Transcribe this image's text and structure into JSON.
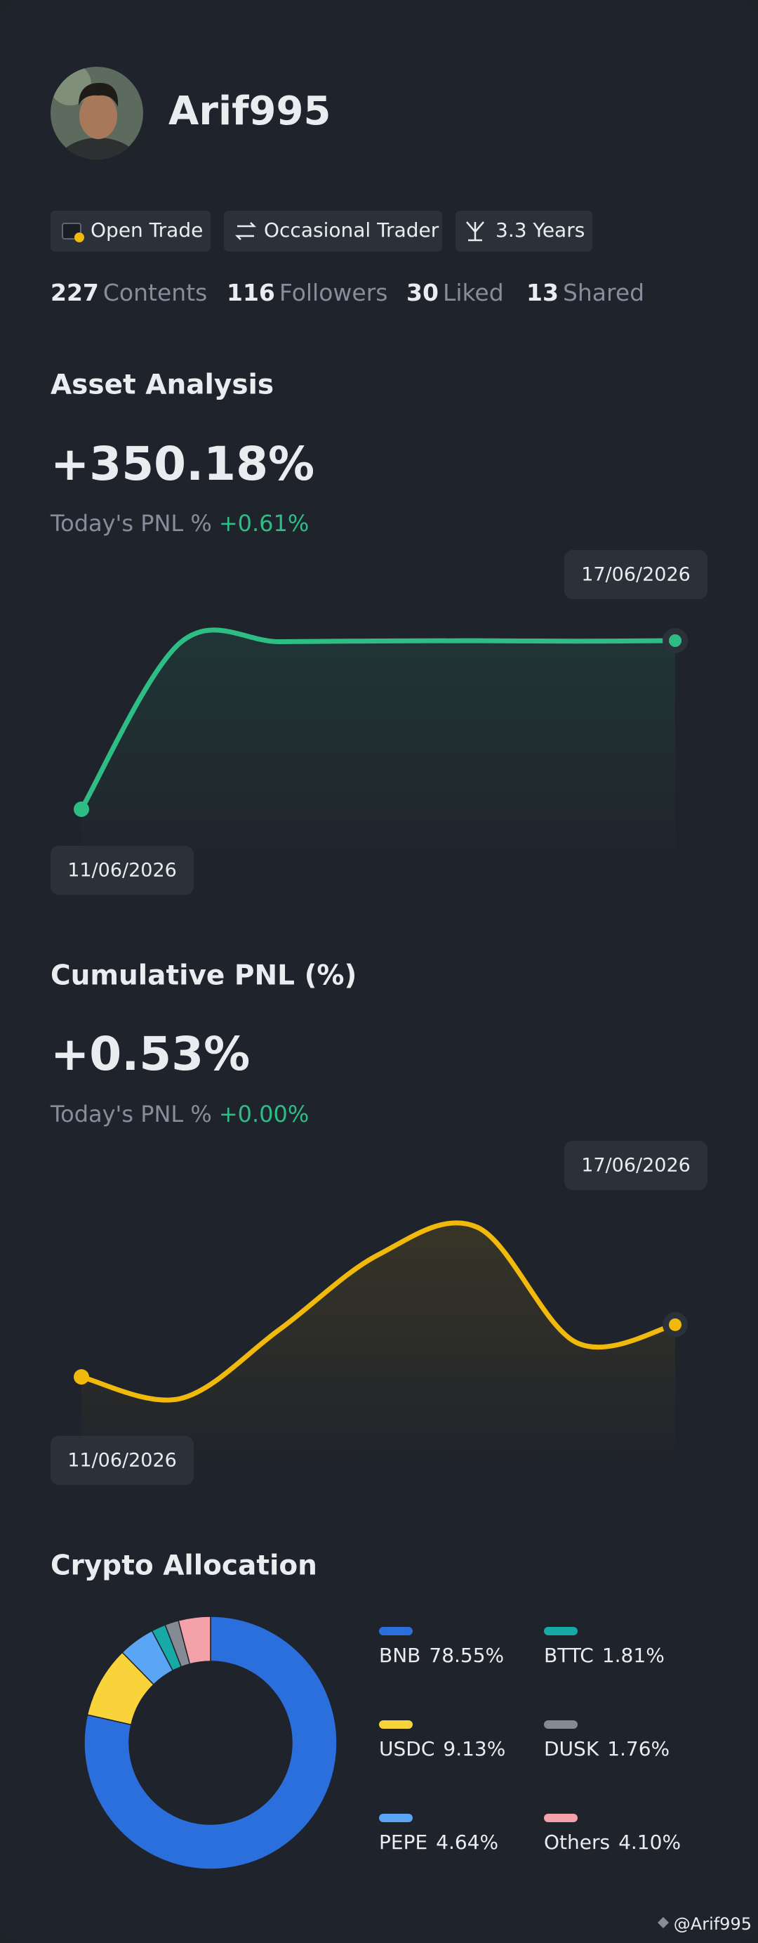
{
  "profile": {
    "name": "Arif995",
    "tags": [
      "Open Trade",
      "Occasional Trader",
      "3.3 Years"
    ],
    "stats": [
      {
        "count": 227,
        "label": "Contents"
      },
      {
        "count": 116,
        "label": "Followers"
      },
      {
        "count": 30,
        "label": "Liked"
      },
      {
        "count": 13,
        "label": "Shared"
      }
    ]
  },
  "chart_data": [
    {
      "type": "line",
      "title": "Asset Analysis",
      "headline": "+350.18%",
      "today_label": "Today's PNL %",
      "today_value": "+0.61%",
      "categories": [
        "11/06/2026",
        null,
        null,
        null,
        null,
        null,
        "17/06/2026"
      ],
      "series": [
        {
          "color": "#2ebd85",
          "values": [
            0,
            346,
            348,
            349.5,
            350,
            349,
            350.18
          ]
        }
      ]
    },
    {
      "type": "line",
      "title": "Cumulative PNL (%)",
      "headline": "+0.53%",
      "today_label": "Today's PNL %",
      "today_value": "+0.00%",
      "categories": [
        "11/06/2026",
        null,
        null,
        null,
        null,
        null,
        "17/06/2026"
      ],
      "series": [
        {
          "color": "#f0b90b",
          "values": [
            0,
            -0.22,
            0.48,
            1.24,
            1.52,
            0.35,
            0.53
          ]
        }
      ]
    },
    {
      "type": "pie",
      "title": "Crypto Allocation",
      "donut": true,
      "categories": [
        "BNB",
        "USDC",
        "PEPE",
        "BTTC",
        "DUSK",
        "Others"
      ],
      "values": [
        78.55,
        9.13,
        4.64,
        1.81,
        1.76,
        4.1
      ],
      "value_labels": [
        "78.55%",
        "9.13%",
        "4.64%",
        "1.81%",
        "1.76%",
        "4.10%"
      ],
      "colors": [
        "#2a6fdb",
        "#f8d33a",
        "#5aa6f5",
        "#17a9a6",
        "#858b94",
        "#f4a1aa"
      ]
    }
  ],
  "watermark": "@Arif995"
}
